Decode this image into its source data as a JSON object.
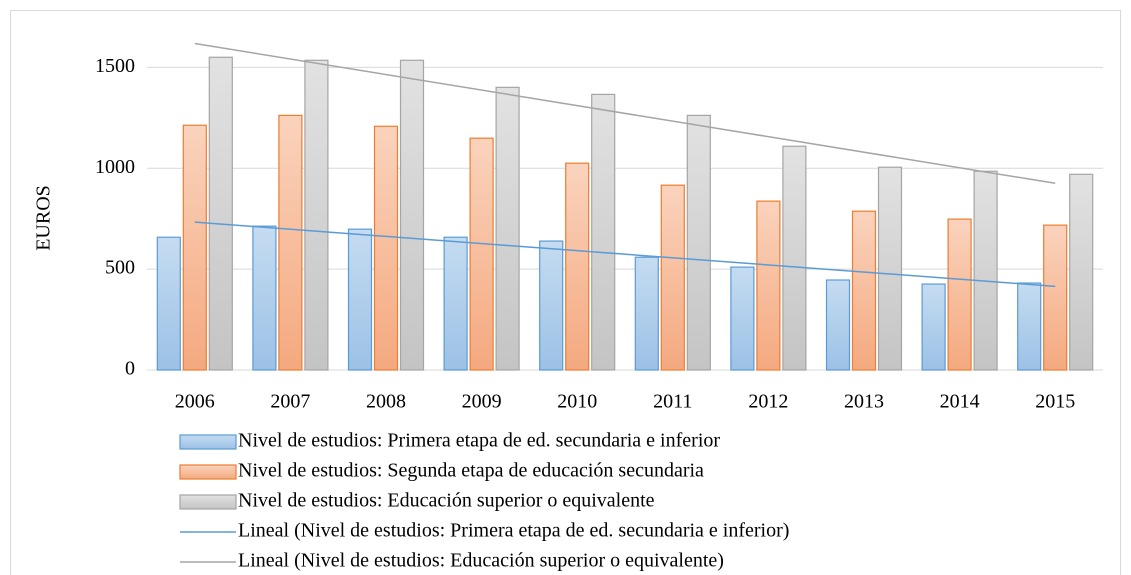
{
  "chart_data": {
    "type": "bar",
    "ylabel": "EUROS",
    "categories": [
      "2006",
      "2007",
      "2008",
      "2009",
      "2010",
      "2011",
      "2012",
      "2013",
      "2014",
      "2015"
    ],
    "series": [
      {
        "name": "Nivel de estudios:  Primera etapa de ed. secundaria e inferior",
        "color": "#5b9bd5",
        "fill": [
          "#c5dcf1",
          "#9cc1e6"
        ],
        "values": [
          658,
          713,
          698,
          658,
          639,
          559,
          510,
          446,
          426,
          431
        ],
        "trend": {
          "name": "Lineal (Nivel de estudios:  Primera etapa de ed. secundaria e inferior)",
          "color": "#5b9bd5"
        }
      },
      {
        "name": "Nivel de estudios:  Segunda etapa de educación secundaria",
        "color": "#ed7d31",
        "fill": [
          "#fad3bd",
          "#f4a97f"
        ],
        "values": [
          1213,
          1262,
          1208,
          1149,
          1025,
          916,
          837,
          787,
          748,
          718
        ]
      },
      {
        "name": "Nivel de estudios: Educación superior o equivalente",
        "color": "#a5a5a5",
        "fill": [
          "#e2e2e2",
          "#c4c4c4"
        ],
        "values": [
          1550,
          1535,
          1535,
          1401,
          1366,
          1262,
          1109,
          1005,
          985,
          970
        ],
        "trend": {
          "name": "Lineal (Nivel de estudios: Educación superior o equivalente)",
          "color": "#a5a5a5"
        }
      }
    ],
    "ylim": [
      0,
      1700
    ],
    "yticks": [
      0,
      500,
      1000,
      1500
    ],
    "grid": true,
    "legend": "bottom"
  }
}
